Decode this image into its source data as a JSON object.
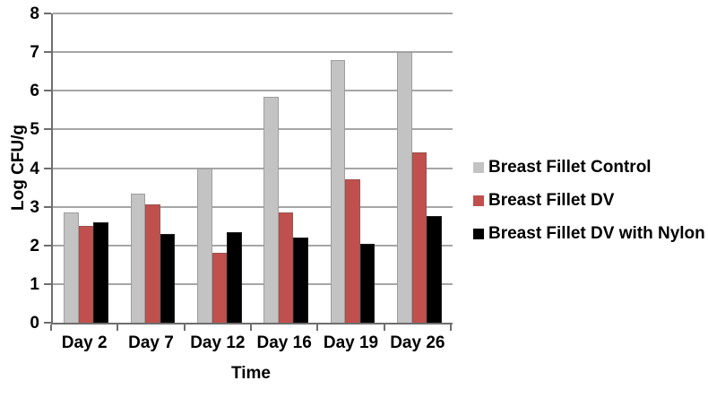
{
  "chart_data": {
    "type": "bar",
    "xlabel": "Time",
    "ylabel": "Log CFU/g",
    "categories": [
      "Day 2",
      "Day 7",
      "Day 12",
      "Day 16",
      "Day 19",
      "Day 26"
    ],
    "series": [
      {
        "name": "Breast Fillet Control",
        "color": "#c3c3c3",
        "values": [
          2.85,
          3.35,
          4.0,
          5.85,
          6.8,
          7.0
        ]
      },
      {
        "name": "Breast Fillet DV",
        "color": "#c0504d",
        "values": [
          2.5,
          3.05,
          1.8,
          2.85,
          3.7,
          4.4
        ]
      },
      {
        "name": "Breast Fillet DV with Nylon",
        "color": "#000000",
        "values": [
          2.6,
          2.3,
          2.35,
          2.2,
          2.05,
          2.75
        ]
      }
    ],
    "ylim": [
      0,
      8
    ],
    "ytick_step": 1,
    "grid": true,
    "legend_position": "right"
  },
  "colors": {
    "background": "#ffffff",
    "gridline": "#a6a6a6",
    "axis": "#6e6e6e",
    "text": "#000000"
  }
}
